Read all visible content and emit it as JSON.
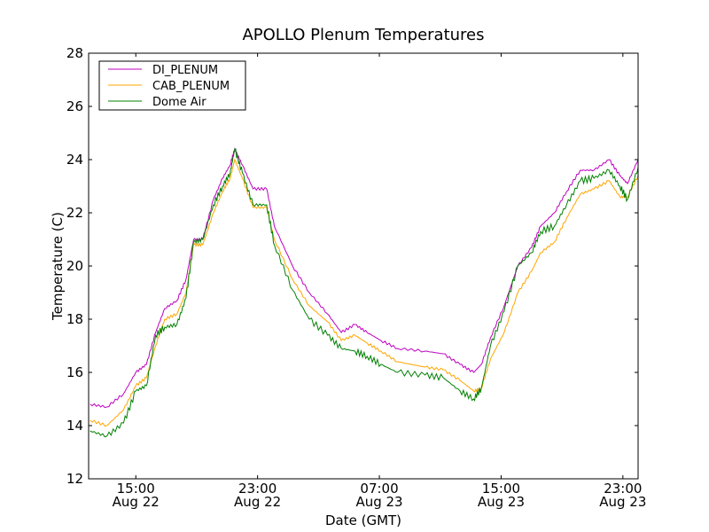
{
  "chart_data": {
    "type": "line",
    "title": "APOLLO Plenum Temperatures",
    "xlabel": "Date (GMT)",
    "ylabel": "Temperature (C)",
    "x_units": "hours since Aug 22 00:00 GMT",
    "xlim": [
      11.9,
      48.0
    ],
    "ylim": [
      12,
      28
    ],
    "yticks": [
      12,
      14,
      16,
      18,
      20,
      22,
      24,
      26,
      28
    ],
    "xticks": [
      {
        "value": 15,
        "time": "15:00",
        "date": "Aug 22"
      },
      {
        "value": 23,
        "time": "23:00",
        "date": "Aug 22"
      },
      {
        "value": 31,
        "time": "07:00",
        "date": "Aug 23"
      },
      {
        "value": 39,
        "time": "15:00",
        "date": "Aug 23"
      },
      {
        "value": 47,
        "time": "23:00",
        "date": "Aug 23"
      }
    ],
    "grid": false,
    "legend_position": "top-left",
    "x": [
      12,
      13.1,
      14.2,
      15,
      15.7,
      16.3,
      16.9,
      17.7,
      18.3,
      18.8,
      19.4,
      20.1,
      20.7,
      21.2,
      21.5,
      22.0,
      22.7,
      23.6,
      24.1,
      25.3,
      26.4,
      27.6,
      28.5,
      29.4,
      30.2,
      31.1,
      32.2,
      34.0,
      35.2,
      36.3,
      37.2,
      37.7,
      38.3,
      39.2,
      40.1,
      41.0,
      41.6,
      42.5,
      43.3,
      44.2,
      45.1,
      46.1,
      46.8,
      47.3,
      48.0
    ],
    "series": [
      {
        "name": "DI_PLENUM",
        "color": "#bf00bf",
        "values": [
          14.8,
          14.7,
          15.2,
          16.0,
          16.3,
          17.5,
          18.4,
          18.7,
          19.5,
          21.0,
          21.0,
          22.5,
          23.3,
          23.8,
          24.4,
          23.8,
          22.9,
          22.9,
          21.5,
          20.0,
          19.0,
          18.2,
          17.5,
          17.8,
          17.5,
          17.2,
          16.9,
          16.8,
          16.7,
          16.3,
          16.0,
          16.3,
          17.3,
          18.5,
          20.0,
          20.7,
          21.5,
          22.0,
          22.8,
          23.6,
          23.6,
          24.0,
          23.4,
          23.1,
          24.0
        ]
      },
      {
        "name": "CAB_PLENUM",
        "color": "#ffa500",
        "values": [
          14.2,
          14.0,
          14.6,
          15.5,
          15.8,
          17.0,
          18.0,
          18.2,
          19.0,
          20.8,
          20.8,
          22.0,
          22.8,
          23.3,
          24.0,
          23.3,
          22.2,
          22.2,
          21.0,
          19.5,
          18.5,
          17.9,
          17.2,
          17.4,
          17.1,
          16.8,
          16.4,
          16.2,
          16.1,
          15.7,
          15.3,
          15.4,
          16.5,
          17.5,
          19.0,
          19.8,
          20.5,
          20.9,
          21.8,
          22.7,
          22.9,
          23.2,
          22.6,
          22.6,
          23.4
        ]
      },
      {
        "name": "Dome Air",
        "color": "#008000",
        "values": [
          13.8,
          13.6,
          14.1,
          15.3,
          15.5,
          17.4,
          17.7,
          17.8,
          18.8,
          20.9,
          21.0,
          22.3,
          23.0,
          23.5,
          24.4,
          23.5,
          22.3,
          22.3,
          20.8,
          19.1,
          18.0,
          17.4,
          16.9,
          16.8,
          16.6,
          16.3,
          16.0,
          15.9,
          15.8,
          15.3,
          15.0,
          15.4,
          17.0,
          18.3,
          20.0,
          20.5,
          21.3,
          21.5,
          22.3,
          23.2,
          23.3,
          23.6,
          23.0,
          22.5,
          23.7
        ]
      }
    ]
  }
}
